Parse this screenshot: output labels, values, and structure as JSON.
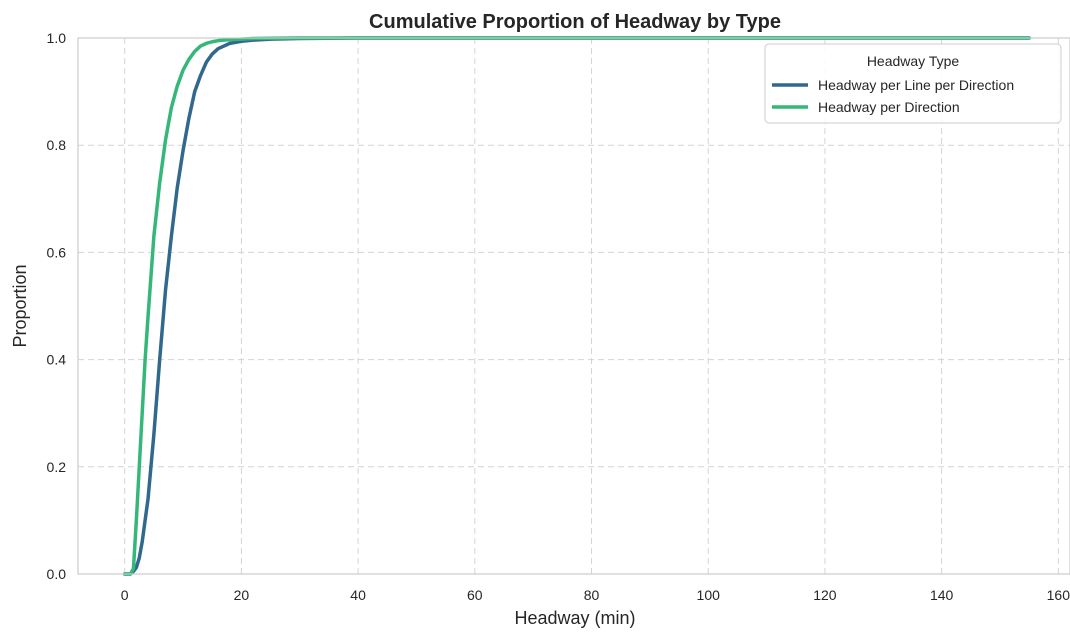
{
  "chart_data": {
    "type": "line",
    "title": "Cumulative Proportion of Headway by Type",
    "xlabel": "Headway (min)",
    "ylabel": "Proportion",
    "xlim": [
      -8,
      162
    ],
    "ylim": [
      0,
      1
    ],
    "xticks": [
      0,
      20,
      40,
      60,
      80,
      100,
      120,
      140,
      160
    ],
    "yticks": [
      0.0,
      0.2,
      0.4,
      0.6,
      0.8,
      1.0
    ],
    "grid": true,
    "legend": {
      "title": "Headway Type",
      "placement": "top-right"
    },
    "series": [
      {
        "name": "Headway per Line per Direction",
        "color": "#31688e",
        "x": [
          0,
          1,
          1.5,
          2,
          2.5,
          3,
          4,
          5,
          6,
          7,
          8,
          9,
          10,
          11,
          12,
          13,
          14,
          15,
          16,
          17,
          18,
          20,
          22,
          25,
          30,
          35,
          40,
          50,
          70,
          100,
          130,
          155
        ],
        "y": [
          0,
          0,
          0.005,
          0.012,
          0.03,
          0.06,
          0.14,
          0.26,
          0.4,
          0.53,
          0.63,
          0.72,
          0.79,
          0.85,
          0.9,
          0.93,
          0.955,
          0.97,
          0.98,
          0.985,
          0.99,
          0.994,
          0.996,
          0.998,
          0.999,
          0.9995,
          1.0,
          1.0,
          1.0,
          1.0,
          1.0,
          1.0
        ]
      },
      {
        "name": "Headway per Direction",
        "color": "#35b779",
        "x": [
          0,
          1,
          1.5,
          2,
          2.5,
          3,
          3.5,
          4,
          5,
          6,
          7,
          8,
          9,
          10,
          11,
          12,
          13,
          14,
          15,
          16,
          18,
          20,
          22,
          25,
          30,
          40,
          60,
          100,
          130,
          155
        ],
        "y": [
          0,
          0,
          0.01,
          0.1,
          0.2,
          0.3,
          0.4,
          0.48,
          0.63,
          0.73,
          0.81,
          0.87,
          0.91,
          0.94,
          0.96,
          0.975,
          0.985,
          0.99,
          0.993,
          0.995,
          0.997,
          0.998,
          0.999,
          0.9995,
          1.0,
          1.0,
          1.0,
          1.0,
          1.0,
          1.0
        ]
      }
    ]
  }
}
